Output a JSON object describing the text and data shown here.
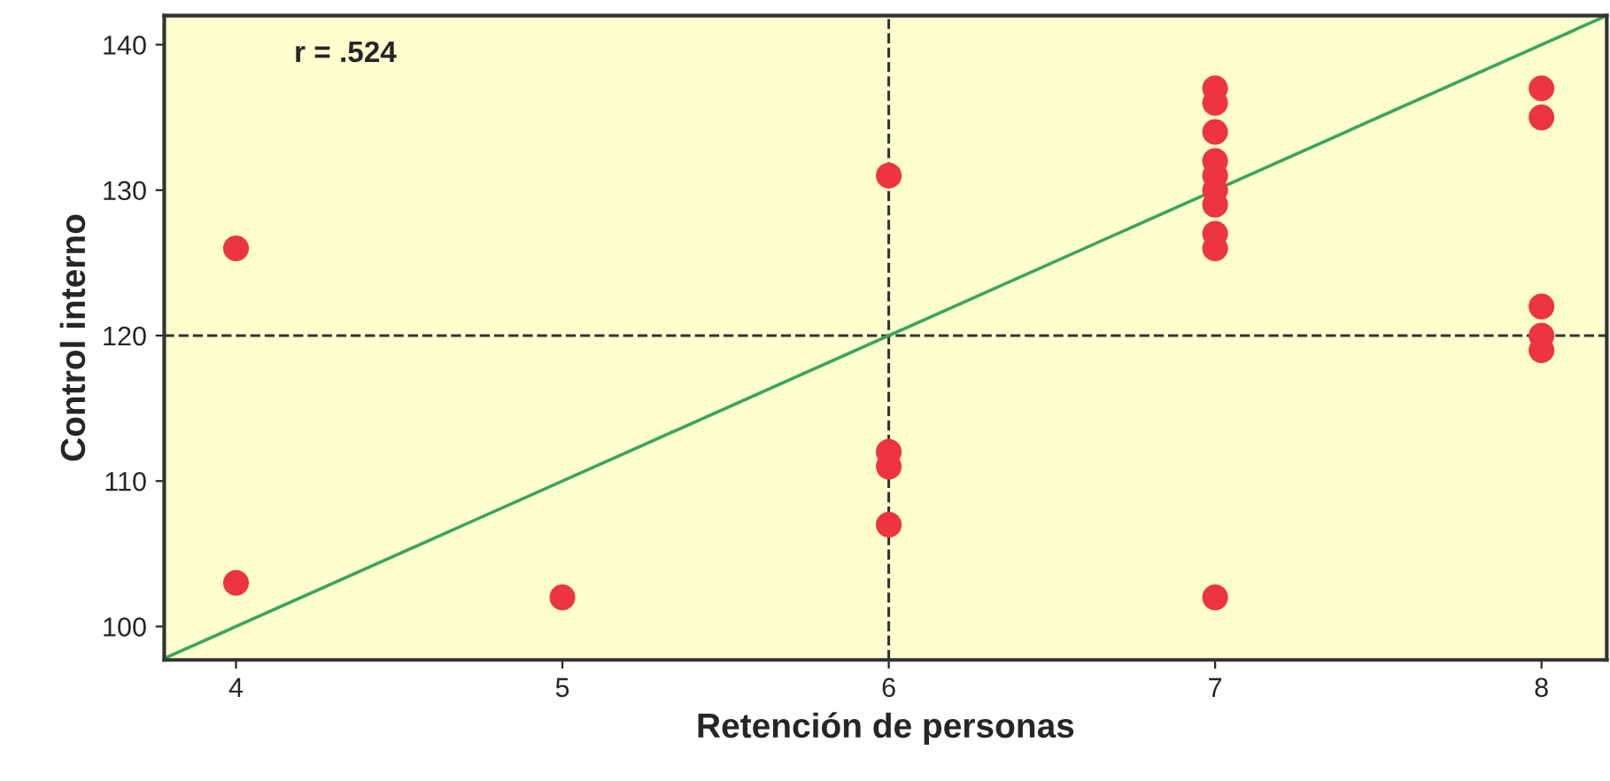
{
  "chart_data": {
    "type": "scatter",
    "xlabel": "Retención de personas",
    "ylabel": "Control interno",
    "annotations": [
      "r = .524"
    ],
    "series": [
      {
        "marker": "circle",
        "color": "#ec3540",
        "x": [
          4,
          4,
          5,
          6,
          6,
          6,
          6,
          7,
          7,
          7,
          7,
          7,
          7,
          7,
          7,
          7,
          7,
          8,
          8,
          8,
          8,
          8
        ],
        "values": [
          126,
          103,
          102,
          131,
          112,
          111,
          107,
          137,
          136,
          134,
          132,
          131,
          130,
          129,
          127,
          126,
          102,
          137,
          135,
          122,
          120,
          119
        ]
      },
      {
        "type": "line",
        "color": "#3ca55a",
        "x": [
          3.78,
          8.2
        ],
        "values": [
          97.8,
          142
        ]
      }
    ],
    "ref_lines": [
      {
        "axis": "x",
        "value": 6,
        "color": "#333333",
        "line_style": "dashed"
      },
      {
        "axis": "y",
        "value": 120,
        "color": "#333333",
        "line_style": "dashed"
      }
    ],
    "xlim": [
      3.78,
      8.2
    ],
    "ylim": [
      97.7,
      142
    ],
    "xticks": [
      4,
      5,
      6,
      7,
      8
    ],
    "yticks": [
      100,
      110,
      120,
      130,
      140
    ],
    "grid": false
  }
}
